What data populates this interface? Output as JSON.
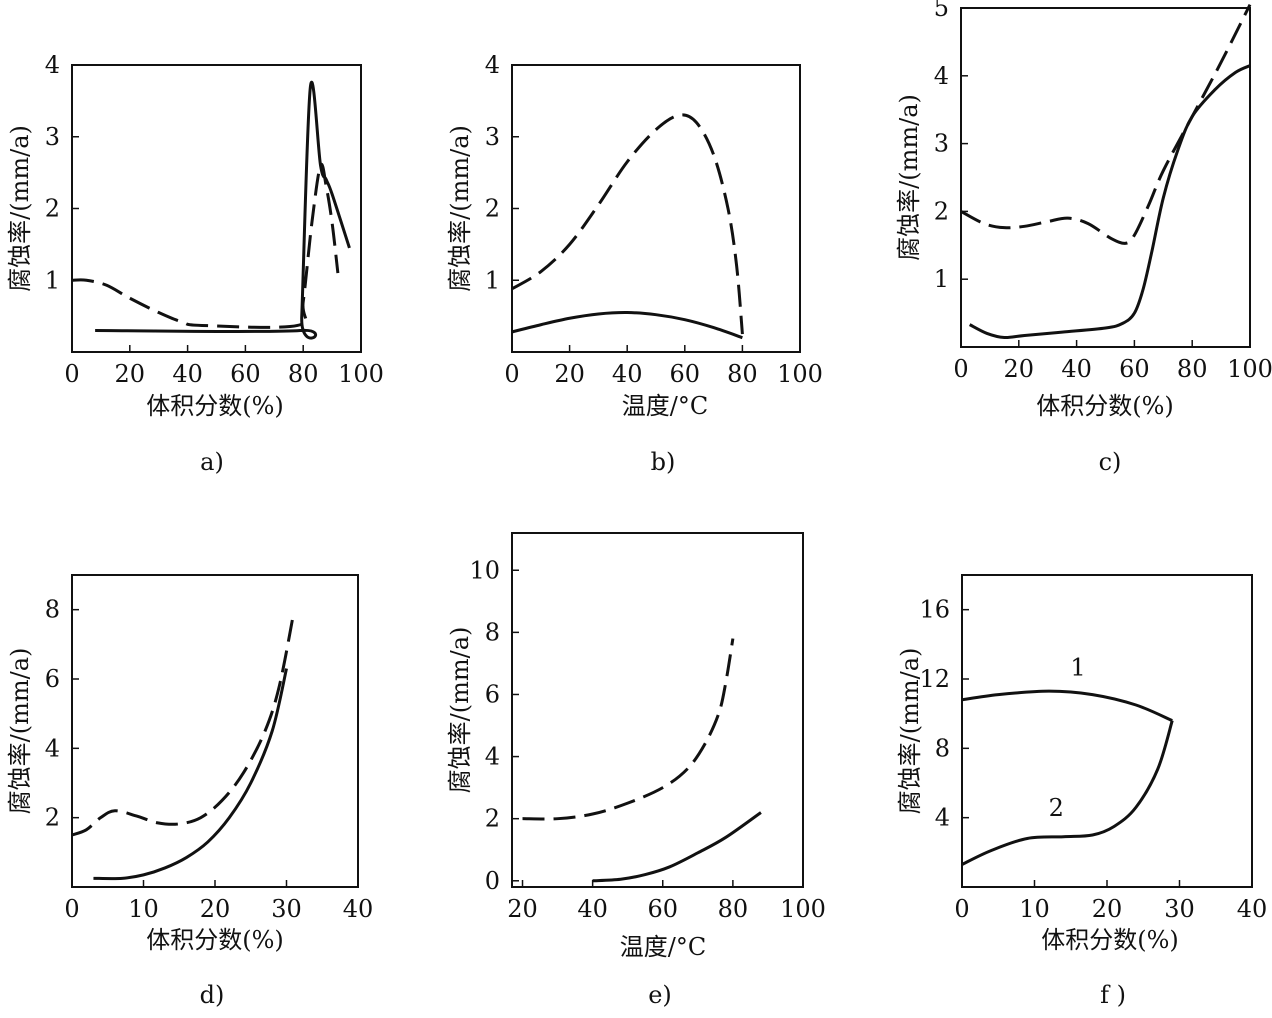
{
  "chart_data": [
    {
      "id": "a",
      "type": "line",
      "caption": "a)",
      "xlabel": "体积分数(%)",
      "ylabel": "腐蚀率/(mm/a)",
      "xlim": [
        0,
        100
      ],
      "ylim": [
        0,
        4
      ],
      "xticks": [
        0,
        20,
        40,
        60,
        80,
        100
      ],
      "yticks": [
        1,
        2,
        3,
        4
      ],
      "series": [
        {
          "style": "solid",
          "points": [
            [
              8,
              0.3
            ],
            [
              79,
              0.3
            ],
            [
              79.5,
              0.5
            ],
            [
              82.5,
              3.7
            ],
            [
              86,
              2.6
            ],
            [
              88,
              2.4
            ],
            [
              90,
              2.2
            ],
            [
              96,
              1.45
            ]
          ]
        },
        {
          "style": "dashed",
          "points": [
            [
              0,
              1.0
            ],
            [
              5,
              1.0
            ],
            [
              12,
              0.93
            ],
            [
              20,
              0.75
            ],
            [
              30,
              0.55
            ],
            [
              38,
              0.42
            ],
            [
              45,
              0.37
            ],
            [
              78,
              0.37
            ],
            [
              80,
              0.7
            ],
            [
              83,
              1.8
            ],
            [
              86,
              2.6
            ],
            [
              88,
              2.3
            ],
            [
              90,
              1.8
            ],
            [
              92,
              1.1
            ]
          ]
        }
      ]
    },
    {
      "id": "b",
      "type": "line",
      "caption": "b)",
      "xlabel": "温度/°C",
      "ylabel": "腐蚀率/(mm/a)",
      "xlim": [
        0,
        100
      ],
      "ylim": [
        0,
        4
      ],
      "xticks": [
        0,
        20,
        40,
        60,
        80,
        100
      ],
      "yticks": [
        1,
        2,
        3,
        4
      ],
      "series": [
        {
          "style": "dashed",
          "points": [
            [
              0,
              0.88
            ],
            [
              10,
              1.12
            ],
            [
              20,
              1.5
            ],
            [
              30,
              2.05
            ],
            [
              40,
              2.65
            ],
            [
              50,
              3.1
            ],
            [
              58,
              3.3
            ],
            [
              64,
              3.2
            ],
            [
              70,
              2.75
            ],
            [
              75,
              2.0
            ],
            [
              78,
              1.2
            ],
            [
              80,
              0.25
            ]
          ]
        },
        {
          "style": "solid",
          "points": [
            [
              0,
              0.28
            ],
            [
              10,
              0.38
            ],
            [
              20,
              0.47
            ],
            [
              30,
              0.53
            ],
            [
              40,
              0.55
            ],
            [
              50,
              0.52
            ],
            [
              60,
              0.45
            ],
            [
              70,
              0.34
            ],
            [
              80,
              0.2
            ]
          ]
        }
      ]
    },
    {
      "id": "c",
      "type": "line",
      "caption": "c)",
      "xlabel": "体积分数(%)",
      "ylabel": "腐蚀率/(mm/a)",
      "xlim": [
        0,
        100
      ],
      "ylim": [
        0,
        5
      ],
      "xticks": [
        0,
        20,
        40,
        60,
        80,
        100
      ],
      "yticks": [
        1,
        2,
        3,
        4,
        5
      ],
      "series": [
        {
          "style": "dashed",
          "points": [
            [
              0,
              2.0
            ],
            [
              8,
              1.82
            ],
            [
              15,
              1.76
            ],
            [
              22,
              1.78
            ],
            [
              30,
              1.85
            ],
            [
              37,
              1.9
            ],
            [
              44,
              1.82
            ],
            [
              52,
              1.6
            ],
            [
              57,
              1.53
            ],
            [
              60,
              1.65
            ],
            [
              65,
              2.1
            ],
            [
              70,
              2.6
            ],
            [
              80,
              3.4
            ],
            [
              90,
              4.2
            ],
            [
              100,
              5.05
            ]
          ]
        },
        {
          "style": "solid",
          "points": [
            [
              3,
              0.33
            ],
            [
              9,
              0.2
            ],
            [
              15,
              0.14
            ],
            [
              22,
              0.17
            ],
            [
              35,
              0.22
            ],
            [
              50,
              0.28
            ],
            [
              56,
              0.35
            ],
            [
              60,
              0.5
            ],
            [
              63,
              0.85
            ],
            [
              66,
              1.4
            ],
            [
              70,
              2.2
            ],
            [
              75,
              2.9
            ],
            [
              80,
              3.4
            ],
            [
              88,
              3.8
            ],
            [
              95,
              4.05
            ],
            [
              100,
              4.15
            ]
          ]
        }
      ]
    },
    {
      "id": "d",
      "type": "line",
      "caption": "d)",
      "xlabel": "体积分数(%)",
      "ylabel": "腐蚀率/(mm/a)",
      "xlim": [
        0,
        40
      ],
      "ylim": [
        0,
        9
      ],
      "xticks": [
        0,
        10,
        20,
        30,
        40
      ],
      "yticks": [
        2,
        4,
        6,
        8
      ],
      "series": [
        {
          "style": "dashed",
          "points": [
            [
              0,
              1.5
            ],
            [
              2,
              1.65
            ],
            [
              4,
              2.0
            ],
            [
              6,
              2.2
            ],
            [
              9,
              2.05
            ],
            [
              12,
              1.85
            ],
            [
              15,
              1.82
            ],
            [
              18,
              2.0
            ],
            [
              21,
              2.5
            ],
            [
              24,
              3.3
            ],
            [
              27,
              4.5
            ],
            [
              29,
              5.8
            ],
            [
              31,
              7.9
            ]
          ]
        },
        {
          "style": "solid",
          "points": [
            [
              3,
              0.25
            ],
            [
              7,
              0.25
            ],
            [
              10,
              0.35
            ],
            [
              13,
              0.55
            ],
            [
              16,
              0.85
            ],
            [
              19,
              1.3
            ],
            [
              22,
              2.0
            ],
            [
              25,
              3.0
            ],
            [
              28,
              4.5
            ],
            [
              30,
              6.3
            ]
          ]
        }
      ]
    },
    {
      "id": "e",
      "type": "line",
      "caption": "e)",
      "xlabel": "温度/°C",
      "ylabel": "腐蚀率/(mm/a)",
      "xlim": [
        17,
        100
      ],
      "ylim": [
        -0.2,
        11.2
      ],
      "xticks": [
        20,
        40,
        60,
        80,
        100
      ],
      "yticks": [
        0,
        2,
        4,
        6,
        8,
        10
      ],
      "series": [
        {
          "style": "dashed",
          "points": [
            [
              20,
              2.0
            ],
            [
              30,
              2.0
            ],
            [
              40,
              2.15
            ],
            [
              50,
              2.5
            ],
            [
              60,
              3.0
            ],
            [
              67,
              3.6
            ],
            [
              72,
              4.4
            ],
            [
              76,
              5.4
            ],
            [
              78,
              6.4
            ],
            [
              80,
              7.8
            ]
          ]
        },
        {
          "style": "solid",
          "points": [
            [
              40,
              0.0
            ],
            [
              48,
              0.05
            ],
            [
              55,
              0.2
            ],
            [
              62,
              0.45
            ],
            [
              70,
              0.9
            ],
            [
              78,
              1.4
            ],
            [
              88,
              2.2
            ]
          ]
        }
      ]
    },
    {
      "id": "f",
      "type": "line",
      "caption": "f )",
      "xlabel": "体积分数(%)",
      "ylabel": "腐蚀率/(mm/a)",
      "xlim": [
        0,
        40
      ],
      "ylim": [
        0,
        18
      ],
      "xticks": [
        0,
        10,
        20,
        30,
        40
      ],
      "yticks": [
        4,
        8,
        12,
        16
      ],
      "series": [
        {
          "style": "solid",
          "label": "1",
          "label_at": [
            16,
            12.2
          ],
          "points": [
            [
              0,
              10.8
            ],
            [
              5,
              11.1
            ],
            [
              12,
              11.3
            ],
            [
              18,
              11.1
            ],
            [
              24,
              10.5
            ],
            [
              29,
              9.6
            ]
          ]
        },
        {
          "style": "solid",
          "label": "2",
          "label_at": [
            13,
            4.1
          ],
          "points": [
            [
              0,
              1.3
            ],
            [
              4,
              2.1
            ],
            [
              9,
              2.8
            ],
            [
              14,
              2.9
            ],
            [
              18,
              3.0
            ],
            [
              21,
              3.5
            ],
            [
              24,
              4.6
            ],
            [
              27,
              6.8
            ],
            [
              29,
              9.6
            ]
          ]
        }
      ]
    }
  ]
}
